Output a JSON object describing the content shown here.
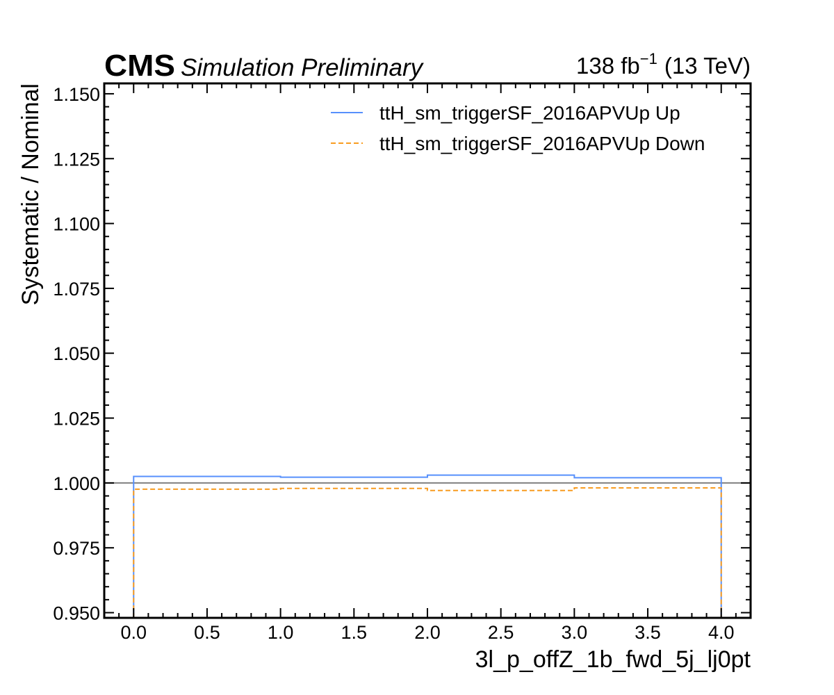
{
  "header": {
    "experiment": "CMS",
    "status": "Simulation Preliminary",
    "lumi_value": "138 fb",
    "lumi_exponent": "−1",
    "energy": "(13 TeV)"
  },
  "chart_data": {
    "type": "line",
    "style": "step",
    "xlabel": "3l_p_offZ_1b_fwd_5j_lj0pt",
    "ylabel": "Systematic / Nominal",
    "xlim": [
      -0.2,
      4.2
    ],
    "ylim": [
      0.948,
      1.154
    ],
    "x_ticks": [
      0.0,
      0.5,
      1.0,
      1.5,
      2.0,
      2.5,
      3.0,
      3.5,
      4.0
    ],
    "x_tick_labels": [
      "0.0",
      "0.5",
      "1.0",
      "1.5",
      "2.0",
      "2.5",
      "3.0",
      "3.5",
      "4.0"
    ],
    "y_ticks": [
      0.95,
      0.975,
      1.0,
      1.025,
      1.05,
      1.075,
      1.1,
      1.125,
      1.15
    ],
    "y_tick_labels": [
      "0.950",
      "0.975",
      "1.000",
      "1.025",
      "1.050",
      "1.075",
      "1.100",
      "1.125",
      "1.150"
    ],
    "bin_edges": [
      0,
      1,
      2,
      3,
      4
    ],
    "reference_line": 1.0,
    "legend_position": "top-right",
    "grid": false,
    "series": [
      {
        "name": "ttH_sm_triggerSF_2016APVUp Up",
        "values": [
          1.0025,
          1.0022,
          1.003,
          1.002
        ],
        "color": "#5790fc",
        "dash": "solid"
      },
      {
        "name": "ttH_sm_triggerSF_2016APVUp Down",
        "values": [
          0.9976,
          0.9979,
          0.9971,
          0.9981
        ],
        "color": "#f89c20",
        "dash": "dashed"
      }
    ],
    "reference_color": "#808080"
  }
}
